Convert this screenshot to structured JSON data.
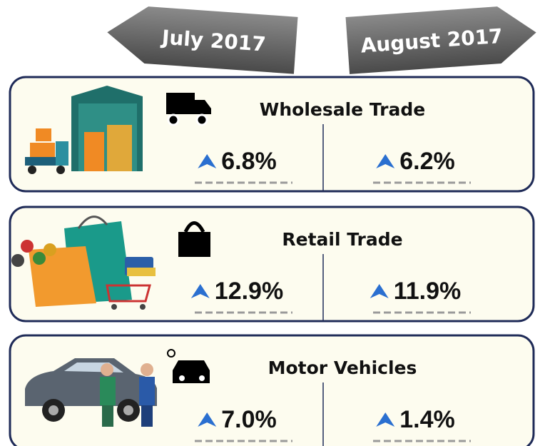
{
  "header": {
    "periods": [
      "July 2017",
      "August 2017"
    ]
  },
  "sectors": [
    {
      "name": "Wholesale Trade",
      "values": [
        "6.8%",
        "6.2%"
      ]
    },
    {
      "name": "Retail Trade",
      "values": [
        "12.9%",
        "11.9%"
      ]
    },
    {
      "name": "Motor Vehicles",
      "values": [
        "7.0%",
        "1.4%"
      ]
    }
  ]
}
